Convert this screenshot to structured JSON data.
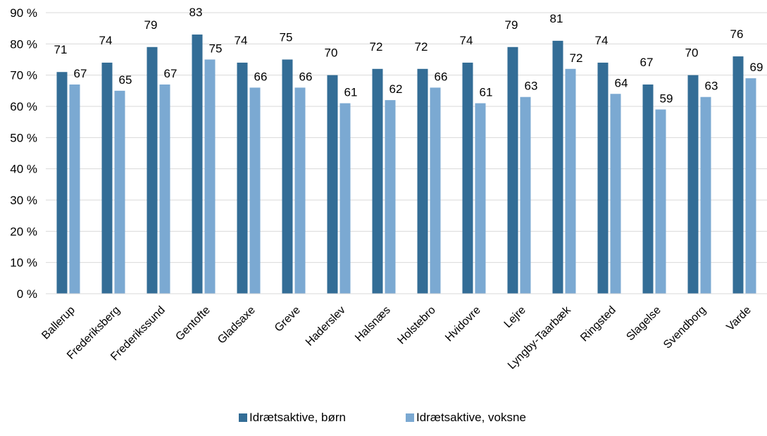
{
  "chart_data": {
    "type": "bar",
    "categories": [
      "Ballerup",
      "Frederiksberg",
      "Frederikssund",
      "Gentofte",
      "Gladsaxe",
      "Greve",
      "Haderslev",
      "Halsnæs",
      "Holstebro",
      "Hvidovre",
      "Lejre",
      "Lyngby-Taarbæk",
      "Ringsted",
      "Slagelse",
      "Svendborg",
      "Varde"
    ],
    "series": [
      {
        "name": "Idrætsaktive, børn",
        "color": "#336d96",
        "values": [
          71,
          74,
          79,
          83,
          74,
          75,
          70,
          72,
          72,
          74,
          79,
          81,
          74,
          67,
          70,
          76
        ]
      },
      {
        "name": "Idrætsaktive, voksne",
        "color": "#7ba9d2",
        "values": [
          67,
          65,
          67,
          75,
          66,
          66,
          61,
          62,
          66,
          61,
          63,
          72,
          64,
          59,
          63,
          69
        ]
      }
    ],
    "ylim": [
      0,
      90
    ],
    "yticks": [
      "0 %",
      "10 %",
      "20 %",
      "30 %",
      "40 %",
      "50 %",
      "60 %",
      "70 %",
      "80 %",
      "90 %"
    ],
    "grid": true,
    "legend": "bottom"
  }
}
